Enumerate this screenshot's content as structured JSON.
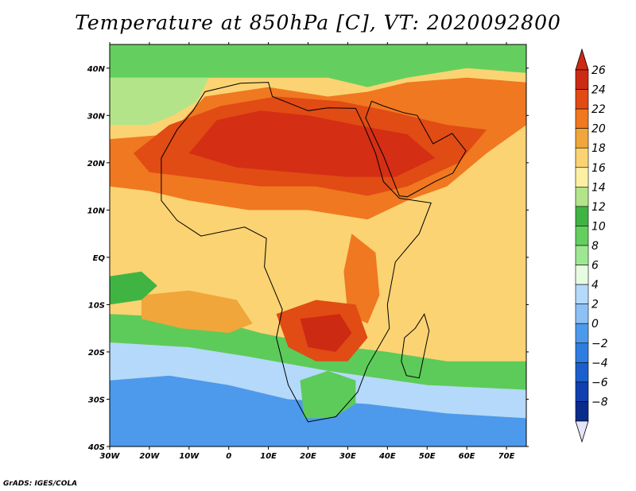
{
  "title": "Temperature at 850hPa [C], VT: 2020092800",
  "credit": "GrADS: IGES/COLA",
  "map": {
    "variable": "Temperature at 850hPa",
    "units": "C",
    "valid_time": "2020092800",
    "lon_range": [
      -30,
      75
    ],
    "lat_range": [
      -40,
      45
    ],
    "lon_ticks": [
      {
        "value": -30,
        "label": "30W"
      },
      {
        "value": -20,
        "label": "20W"
      },
      {
        "value": -10,
        "label": "10W"
      },
      {
        "value": 0,
        "label": "0"
      },
      {
        "value": 10,
        "label": "10E"
      },
      {
        "value": 20,
        "label": "20E"
      },
      {
        "value": 30,
        "label": "30E"
      },
      {
        "value": 40,
        "label": "40E"
      },
      {
        "value": 50,
        "label": "50E"
      },
      {
        "value": 60,
        "label": "60E"
      },
      {
        "value": 70,
        "label": "70E"
      }
    ],
    "lat_ticks": [
      {
        "value": 40,
        "label": "40N"
      },
      {
        "value": 30,
        "label": "30N"
      },
      {
        "value": 20,
        "label": "20N"
      },
      {
        "value": 10,
        "label": "10N"
      },
      {
        "value": 0,
        "label": "EQ"
      },
      {
        "value": -10,
        "label": "10S"
      },
      {
        "value": -20,
        "label": "20S"
      },
      {
        "value": -30,
        "label": "30S"
      },
      {
        "value": -40,
        "label": "40S"
      }
    ],
    "background_color": "#fbd373",
    "temperature_regions": [
      {
        "name": "ocean-south-cold",
        "temp": 2,
        "color": "#4d9aec",
        "points": [
          [
            -30,
            -40
          ],
          [
            75,
            -40
          ],
          [
            75,
            -34
          ],
          [
            55,
            -33
          ],
          [
            35,
            -31
          ],
          [
            15,
            -30
          ],
          [
            0,
            -27
          ],
          [
            -15,
            -25
          ],
          [
            -30,
            -26
          ]
        ]
      },
      {
        "name": "ocean-south-mid",
        "temp": 6,
        "color": "#b4d9fb",
        "points": [
          [
            -30,
            -26
          ],
          [
            -15,
            -25
          ],
          [
            0,
            -27
          ],
          [
            15,
            -30
          ],
          [
            35,
            -31
          ],
          [
            55,
            -33
          ],
          [
            75,
            -34
          ],
          [
            75,
            -28
          ],
          [
            50,
            -27
          ],
          [
            25,
            -24
          ],
          [
            5,
            -21
          ],
          [
            -10,
            -19
          ],
          [
            -30,
            -18
          ]
        ]
      },
      {
        "name": "ocean-south-cool",
        "temp": 10,
        "color": "#5ccb5a",
        "points": [
          [
            -30,
            -18
          ],
          [
            -10,
            -19
          ],
          [
            5,
            -21
          ],
          [
            25,
            -24
          ],
          [
            50,
            -27
          ],
          [
            75,
            -28
          ],
          [
            75,
            -22
          ],
          [
            55,
            -22
          ],
          [
            40,
            -20
          ],
          [
            20,
            -18
          ],
          [
            8,
            -16
          ],
          [
            -5,
            -13
          ],
          [
            -30,
            -12
          ]
        ]
      },
      {
        "name": "south-atlantic-warm",
        "temp": 18,
        "color": "#f0a63a",
        "points": [
          [
            -22,
            -8
          ],
          [
            -10,
            -7
          ],
          [
            2,
            -9
          ],
          [
            6,
            -14
          ],
          [
            0,
            -16
          ],
          [
            -12,
            -15
          ],
          [
            -22,
            -13
          ]
        ]
      },
      {
        "name": "atlantic-green-patch",
        "temp": 12,
        "color": "#3fb443",
        "points": [
          [
            -30,
            -4
          ],
          [
            -22,
            -3
          ],
          [
            -18,
            -6
          ],
          [
            -22,
            -9
          ],
          [
            -30,
            -10
          ]
        ]
      },
      {
        "name": "north-cool",
        "temp": 12,
        "color": "#64cf5e",
        "points": [
          [
            -30,
            45
          ],
          [
            75,
            45
          ],
          [
            75,
            39
          ],
          [
            60,
            40
          ],
          [
            45,
            38
          ],
          [
            35,
            36
          ],
          [
            25,
            38
          ],
          [
            10,
            38
          ],
          [
            -5,
            38
          ],
          [
            -30,
            38
          ]
        ]
      },
      {
        "name": "atlantic-north-cool",
        "temp": 14,
        "color": "#b3e48a",
        "points": [
          [
            -30,
            38
          ],
          [
            -5,
            38
          ],
          [
            -8,
            33
          ],
          [
            -14,
            30
          ],
          [
            -20,
            28
          ],
          [
            -30,
            28
          ]
        ]
      },
      {
        "name": "sahara-mid",
        "temp": 22,
        "color": "#f07820",
        "points": [
          [
            -30,
            25
          ],
          [
            -15,
            26
          ],
          [
            -6,
            34
          ],
          [
            10,
            36
          ],
          [
            25,
            34
          ],
          [
            35,
            35
          ],
          [
            45,
            37
          ],
          [
            60,
            38
          ],
          [
            75,
            37
          ],
          [
            75,
            28
          ],
          [
            65,
            22
          ],
          [
            55,
            15
          ],
          [
            45,
            12
          ],
          [
            35,
            8
          ],
          [
            20,
            10
          ],
          [
            5,
            10
          ],
          [
            -10,
            12
          ],
          [
            -20,
            14
          ],
          [
            -30,
            15
          ]
        ]
      },
      {
        "name": "sahara-hot",
        "temp": 24,
        "color": "#e14b14",
        "points": [
          [
            -24,
            22
          ],
          [
            -15,
            28
          ],
          [
            -2,
            32
          ],
          [
            12,
            34
          ],
          [
            28,
            33
          ],
          [
            40,
            31
          ],
          [
            55,
            28
          ],
          [
            65,
            27
          ],
          [
            58,
            20
          ],
          [
            45,
            15
          ],
          [
            35,
            13
          ],
          [
            22,
            15
          ],
          [
            8,
            15
          ],
          [
            -10,
            17
          ],
          [
            -20,
            18
          ]
        ]
      },
      {
        "name": "sahara-core",
        "temp": 25,
        "color": "#d42e14",
        "points": [
          [
            -10,
            22
          ],
          [
            -3,
            29
          ],
          [
            8,
            31
          ],
          [
            20,
            30
          ],
          [
            32,
            28
          ],
          [
            45,
            26
          ],
          [
            52,
            21
          ],
          [
            42,
            17
          ],
          [
            30,
            17
          ],
          [
            16,
            18
          ],
          [
            2,
            19
          ]
        ]
      },
      {
        "name": "east-africa-hot",
        "temp": 22,
        "color": "#f07820",
        "points": [
          [
            31,
            5
          ],
          [
            37,
            1
          ],
          [
            38,
            -8
          ],
          [
            35,
            -14
          ],
          [
            30,
            -12
          ],
          [
            29,
            -3
          ]
        ]
      },
      {
        "name": "southern-africa-hot",
        "temp": 24,
        "color": "#e14b14",
        "points": [
          [
            12,
            -12
          ],
          [
            22,
            -9
          ],
          [
            32,
            -10
          ],
          [
            35,
            -17
          ],
          [
            30,
            -22
          ],
          [
            22,
            -22
          ],
          [
            15,
            -19
          ]
        ]
      },
      {
        "name": "southern-africa-core",
        "temp": 26,
        "color": "#cc2a12",
        "points": [
          [
            18,
            -13
          ],
          [
            28,
            -12
          ],
          [
            31,
            -16
          ],
          [
            27,
            -20
          ],
          [
            20,
            -19
          ]
        ]
      },
      {
        "name": "south-africa-cool",
        "temp": 10,
        "color": "#5ccb5a",
        "points": [
          [
            18,
            -26
          ],
          [
            25,
            -24
          ],
          [
            32,
            -26
          ],
          [
            32,
            -31
          ],
          [
            26,
            -34
          ],
          [
            19,
            -34
          ]
        ]
      }
    ],
    "africa_outline": [
      [
        -17,
        15
      ],
      [
        -17,
        21
      ],
      [
        -13,
        27
      ],
      [
        -9,
        31
      ],
      [
        -6,
        35
      ],
      [
        3,
        36.8
      ],
      [
        10,
        37
      ],
      [
        11,
        34
      ],
      [
        20,
        31
      ],
      [
        25,
        31.6
      ],
      [
        32,
        31.5
      ],
      [
        34,
        28
      ],
      [
        37,
        22
      ],
      [
        39,
        16
      ],
      [
        43,
        12.5
      ],
      [
        51,
        11.5
      ],
      [
        48,
        5
      ],
      [
        42,
        -1
      ],
      [
        40,
        -10
      ],
      [
        40.5,
        -15
      ],
      [
        35,
        -23
      ],
      [
        32.5,
        -28.5
      ],
      [
        27,
        -33.7
      ],
      [
        20,
        -34.8
      ],
      [
        18.2,
        -32
      ],
      [
        15,
        -27
      ],
      [
        12,
        -17
      ],
      [
        13.5,
        -11
      ],
      [
        9,
        -2
      ],
      [
        9.5,
        4
      ],
      [
        4,
        6.4
      ],
      [
        -7,
        4.5
      ],
      [
        -13,
        7.8
      ],
      [
        -17,
        12
      ],
      [
        -17,
        15
      ]
    ],
    "madagascar_outline": [
      [
        49.3,
        -12
      ],
      [
        50.5,
        -15.5
      ],
      [
        48,
        -25.5
      ],
      [
        44.8,
        -25
      ],
      [
        43.5,
        -22
      ],
      [
        44.3,
        -17
      ],
      [
        47,
        -15
      ]
    ],
    "arabia_outline": [
      [
        34.5,
        29.5
      ],
      [
        39,
        21.5
      ],
      [
        43,
        13
      ],
      [
        45,
        12.8
      ],
      [
        52,
        16
      ],
      [
        56.5,
        17.8
      ],
      [
        59.8,
        22.5
      ],
      [
        56.3,
        26.2
      ],
      [
        51.5,
        24
      ],
      [
        48.5,
        28.5
      ],
      [
        47.5,
        30
      ],
      [
        44,
        30.6
      ],
      [
        39,
        32
      ],
      [
        36,
        33
      ]
    ],
    "colorbar": {
      "levels": [
        {
          "label": "26",
          "color": "#cc2a12"
        },
        {
          "label": "24",
          "color": "#e14b14"
        },
        {
          "label": "22",
          "color": "#f07820"
        },
        {
          "label": "20",
          "color": "#f0a63a"
        },
        {
          "label": "18",
          "color": "#fbd373"
        },
        {
          "label": "16",
          "color": "#fdf0a3"
        },
        {
          "label": "14",
          "color": "#b3e48a"
        },
        {
          "label": "12",
          "color": "#3fb443"
        },
        {
          "label": "10",
          "color": "#64cf5e"
        },
        {
          "label": "8",
          "color": "#9ee792"
        },
        {
          "label": "6",
          "color": "#e7fbe1"
        },
        {
          "label": "4",
          "color": "#b4d9fb"
        },
        {
          "label": "2",
          "color": "#8dc1f5"
        },
        {
          "label": "0",
          "color": "#4d9aec"
        },
        {
          "label": "−2",
          "color": "#2e7de0"
        },
        {
          "label": "−4",
          "color": "#1b5fcc"
        },
        {
          "label": "−6",
          "color": "#1040b0"
        },
        {
          "label": "−8",
          "color": "#0a2b8c"
        }
      ],
      "under_color": "#e4e4fc"
    }
  }
}
